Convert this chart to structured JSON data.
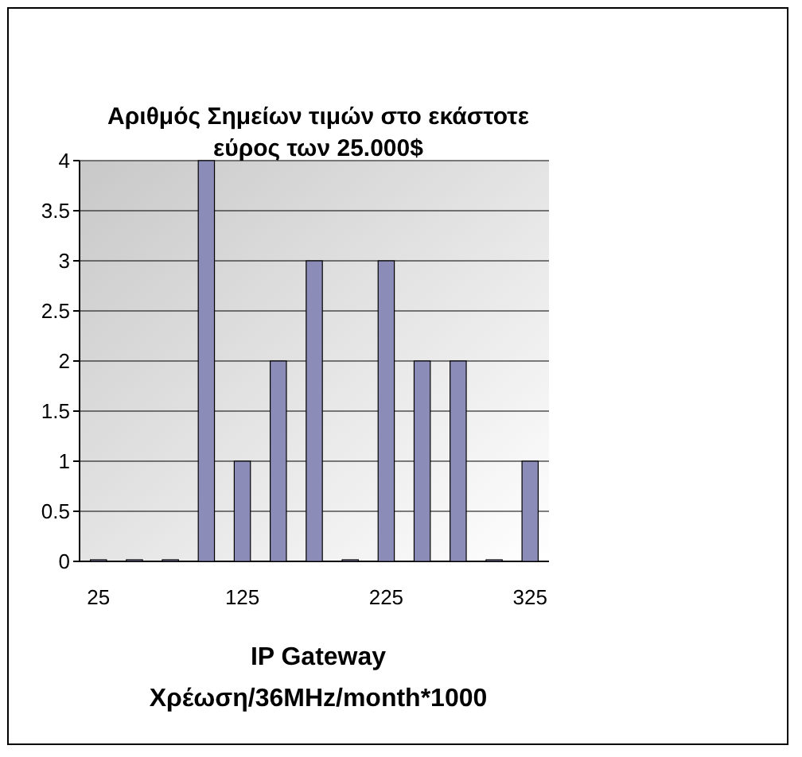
{
  "chart_data": {
    "type": "bar",
    "title": "Αριθμός Σημείων τιμών στο εκάστοτε εύρος των 25.000$",
    "xlabel": "IP Gateway Χρέωση/36MHz/month*1000",
    "categories": [
      "25",
      null,
      null,
      null,
      "125",
      null,
      null,
      null,
      "225",
      null,
      null,
      null,
      "325"
    ],
    "values": [
      0,
      0,
      0,
      4,
      1,
      2,
      3,
      0,
      3,
      2,
      2,
      0,
      1
    ],
    "color": "#8c8cb8",
    "ylim": [
      0,
      4
    ],
    "yticks": [
      0,
      0.5,
      1,
      1.5,
      2,
      2.5,
      3,
      3.5,
      4
    ],
    "grid": "y"
  }
}
